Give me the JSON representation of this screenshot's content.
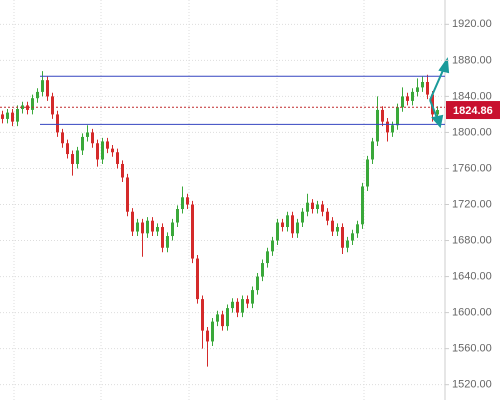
{
  "chart_data": {
    "type": "candlestick",
    "open": [
      1820,
      1815,
      1822,
      1812,
      1826,
      1830,
      1825,
      1838,
      1845,
      1858,
      1840,
      1820,
      1800,
      1788,
      1776,
      1765,
      1780,
      1795,
      1800,
      1788,
      1770,
      1790,
      1782,
      1778,
      1765,
      1750,
      1712,
      1690,
      1700,
      1688,
      1702,
      1690,
      1695,
      1672,
      1685,
      1700,
      1715,
      1728,
      1720,
      1660,
      1615,
      1580,
      1568,
      1590,
      1598,
      1585,
      1605,
      1612,
      1600,
      1615,
      1610,
      1625,
      1640,
      1655,
      1668,
      1680,
      1700,
      1695,
      1708,
      1688,
      1700,
      1712,
      1722,
      1715,
      1720,
      1712,
      1702,
      1690,
      1695,
      1672,
      1680,
      1688,
      1698,
      1740,
      1770,
      1790,
      1825,
      1812,
      1800,
      1808,
      1828,
      1840,
      1835,
      1845,
      1850,
      1856,
      1842,
      1820
    ],
    "high": [
      1824,
      1826,
      1826,
      1830,
      1834,
      1834,
      1842,
      1849,
      1868,
      1862,
      1844,
      1824,
      1804,
      1792,
      1780,
      1784,
      1799,
      1808,
      1804,
      1792,
      1794,
      1794,
      1786,
      1782,
      1769,
      1754,
      1716,
      1704,
      1704,
      1706,
      1706,
      1699,
      1699,
      1689,
      1704,
      1719,
      1740,
      1732,
      1724,
      1664,
      1619,
      1584,
      1594,
      1602,
      1602,
      1609,
      1616,
      1616,
      1619,
      1619,
      1629,
      1644,
      1659,
      1672,
      1684,
      1704,
      1704,
      1712,
      1712,
      1704,
      1716,
      1732,
      1726,
      1724,
      1724,
      1716,
      1706,
      1699,
      1699,
      1684,
      1692,
      1702,
      1744,
      1774,
      1794,
      1840,
      1829,
      1816,
      1812,
      1832,
      1850,
      1844,
      1849,
      1860,
      1862,
      1864,
      1846,
      1829
    ],
    "low": [
      1810,
      1810,
      1807,
      1807,
      1821,
      1820,
      1820,
      1833,
      1840,
      1835,
      1815,
      1795,
      1783,
      1771,
      1752,
      1760,
      1775,
      1790,
      1783,
      1762,
      1765,
      1777,
      1773,
      1760,
      1745,
      1707,
      1685,
      1685,
      1662,
      1683,
      1685,
      1685,
      1667,
      1667,
      1680,
      1695,
      1710,
      1715,
      1655,
      1610,
      1560,
      1540,
      1563,
      1585,
      1580,
      1580,
      1600,
      1595,
      1595,
      1605,
      1605,
      1620,
      1635,
      1650,
      1663,
      1675,
      1690,
      1690,
      1683,
      1683,
      1695,
      1707,
      1710,
      1710,
      1707,
      1697,
      1685,
      1685,
      1665,
      1667,
      1675,
      1683,
      1693,
      1735,
      1765,
      1785,
      1807,
      1790,
      1795,
      1803,
      1823,
      1830,
      1830,
      1840,
      1845,
      1837,
      1812,
      1815
    ],
    "close": [
      1815,
      1822,
      1812,
      1826,
      1830,
      1825,
      1838,
      1845,
      1858,
      1840,
      1820,
      1800,
      1788,
      1776,
      1765,
      1780,
      1795,
      1800,
      1788,
      1770,
      1790,
      1782,
      1778,
      1765,
      1750,
      1712,
      1690,
      1700,
      1688,
      1702,
      1690,
      1695,
      1672,
      1685,
      1700,
      1715,
      1728,
      1720,
      1660,
      1615,
      1580,
      1568,
      1590,
      1598,
      1585,
      1605,
      1612,
      1600,
      1615,
      1610,
      1625,
      1640,
      1655,
      1668,
      1680,
      1700,
      1695,
      1708,
      1688,
      1700,
      1712,
      1722,
      1715,
      1720,
      1712,
      1702,
      1690,
      1695,
      1672,
      1680,
      1688,
      1698,
      1740,
      1770,
      1790,
      1825,
      1812,
      1800,
      1808,
      1828,
      1840,
      1835,
      1845,
      1850,
      1856,
      1842,
      1820,
      1824.86
    ],
    "up_color": "#3aa83a",
    "down_color": "#d42a2a",
    "levels": [
      {
        "value": 1862.4,
        "color": "#3545c0",
        "style": "solid"
      },
      {
        "value": 1808.9,
        "color": "#3545c0",
        "style": "solid"
      },
      {
        "value": 1828,
        "color": "#c0282c",
        "style": "dotted"
      }
    ],
    "last_price_color": "#c8102e",
    "ylim": [
      1503,
      1947
    ],
    "yticks": [
      {
        "value": 1520,
        "label": "1520.00"
      },
      {
        "value": 1560,
        "label": "1560.00"
      },
      {
        "value": 1600,
        "label": "1600.00"
      },
      {
        "value": 1640,
        "label": "1640.00"
      },
      {
        "value": 1680,
        "label": "1680.00"
      },
      {
        "value": 1720,
        "label": "1720.00"
      },
      {
        "value": 1760,
        "label": "1760.00"
      },
      {
        "value": 1800,
        "label": "1800.00"
      },
      {
        "value": 1840,
        "label": "1840.00"
      },
      {
        "value": 1880,
        "label": "1880.00"
      },
      {
        "value": 1920,
        "label": "1920.00"
      }
    ],
    "grid": true
  }
}
